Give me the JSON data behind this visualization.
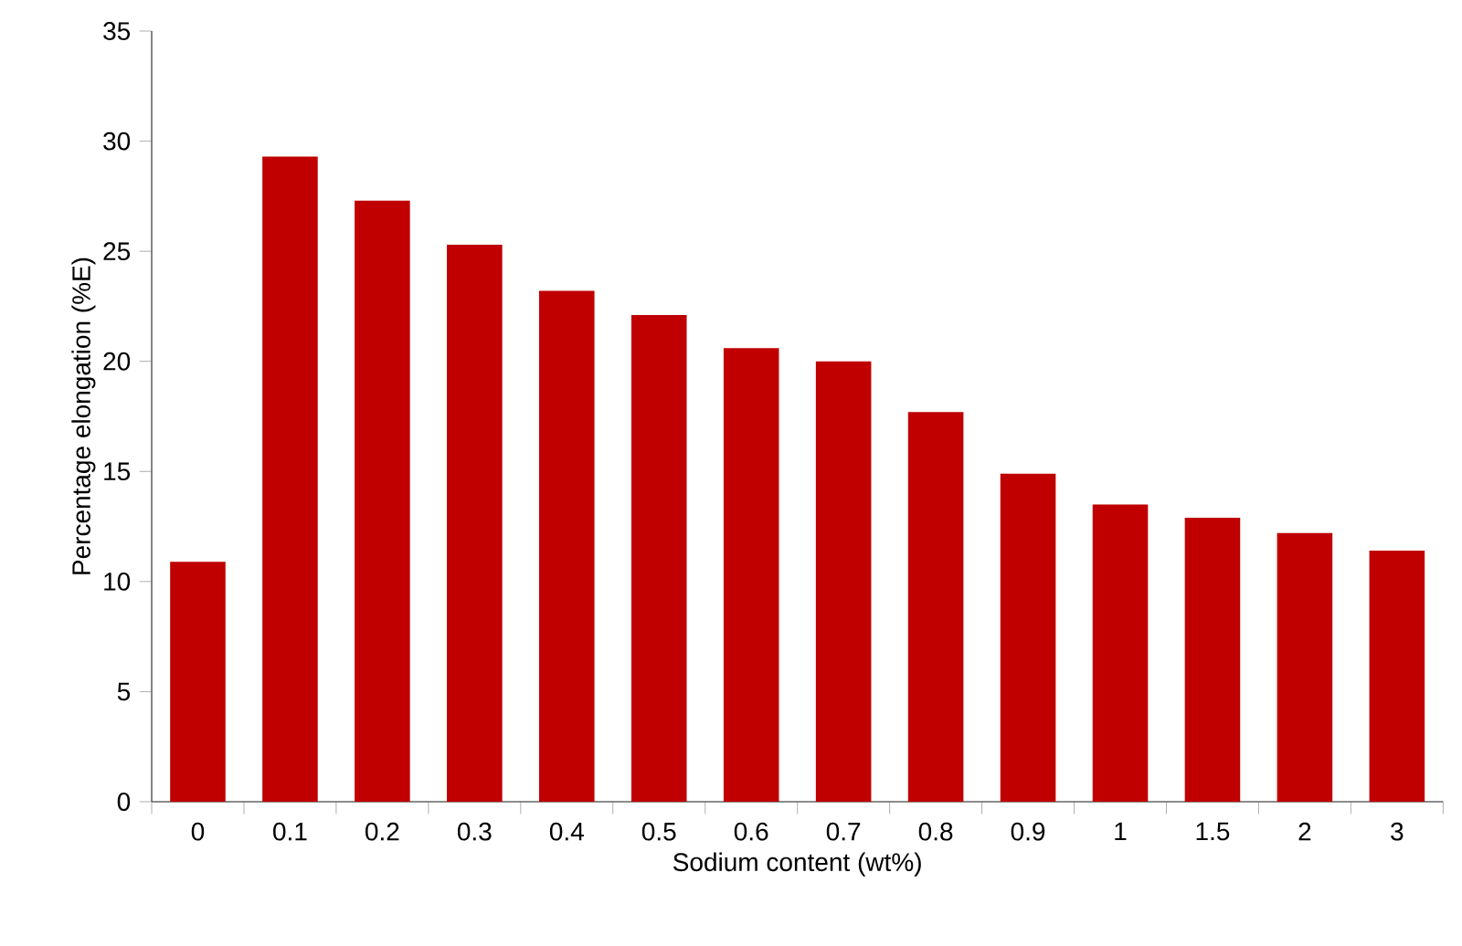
{
  "chart_data": {
    "type": "bar",
    "xlabel": "Sodium content (wt%)",
    "ylabel": "Percentage elongation (%E)",
    "categories": [
      "0",
      "0.1",
      "0.2",
      "0.3",
      "0.4",
      "0.5",
      "0.6",
      "0.7",
      "0.8",
      "0.9",
      "1",
      "1.5",
      "2",
      "3"
    ],
    "values": [
      10.9,
      29.3,
      27.3,
      25.3,
      23.2,
      22.1,
      20.6,
      20.0,
      17.7,
      14.9,
      13.5,
      12.9,
      12.2,
      11.4
    ],
    "color": "#c00000",
    "ylim": [
      0,
      35
    ],
    "yticks": [
      0,
      5,
      10,
      15,
      20,
      25,
      30,
      35
    ]
  }
}
